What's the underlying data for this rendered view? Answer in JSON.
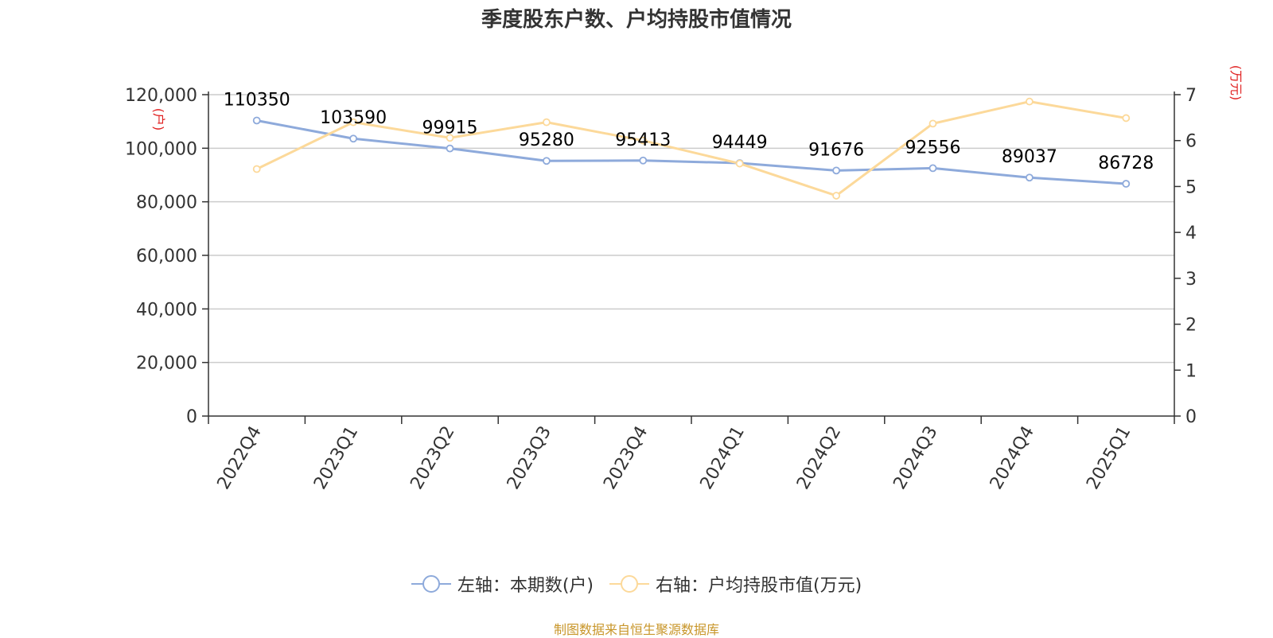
{
  "title": "季度股东户数、户均持股市值情况",
  "source": "制图数据来自恒生聚源数据库",
  "chart_data": {
    "type": "line",
    "title": "季度股东户数、户均持股市值情况",
    "categories": [
      "2022Q4",
      "2023Q1",
      "2023Q2",
      "2023Q3",
      "2023Q4",
      "2024Q1",
      "2024Q2",
      "2024Q3",
      "2024Q4",
      "2025Q1"
    ],
    "y_left": {
      "unit": "(户)",
      "range": [
        0,
        120000
      ],
      "ticks": [
        0,
        20000,
        40000,
        60000,
        80000,
        100000,
        120000
      ],
      "tick_labels": [
        "0",
        "20,000",
        "40,000",
        "60,000",
        "80,000",
        "100,000",
        "120,000"
      ]
    },
    "y_right": {
      "unit": "(万元)",
      "range": [
        0,
        7
      ],
      "ticks": [
        0,
        1,
        2,
        3,
        4,
        5,
        6,
        7
      ],
      "tick_labels": [
        "0",
        "1",
        "2",
        "3",
        "4",
        "5",
        "6",
        "7"
      ]
    },
    "grid": true,
    "legend_position": "bottom",
    "series": [
      {
        "name": "左轴：本期数(户)",
        "axis": "left",
        "color": "#8eaadb",
        "values": [
          110350,
          103590,
          99915,
          95280,
          95413,
          94449,
          91676,
          92556,
          89037,
          86728
        ],
        "labels": [
          "110350",
          "103590",
          "99915",
          "95280",
          "95413",
          "94449",
          "91676",
          "92556",
          "89037",
          "86728"
        ]
      },
      {
        "name": "右轴：户均持股市值(万元)",
        "axis": "right",
        "color": "#fcd99a",
        "values": [
          5.38,
          6.4,
          6.06,
          6.4,
          6.0,
          5.5,
          4.8,
          6.37,
          6.85,
          6.49
        ]
      }
    ]
  }
}
